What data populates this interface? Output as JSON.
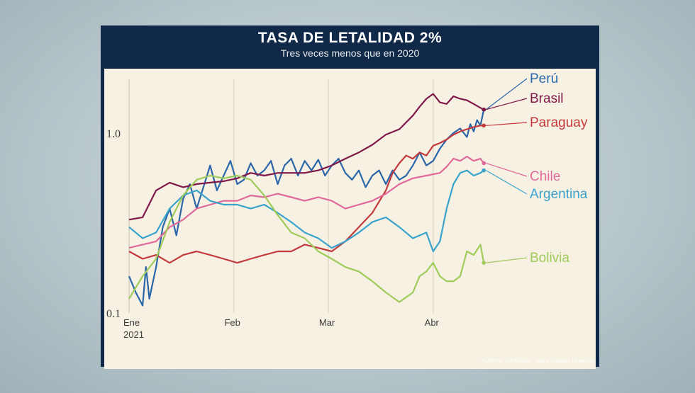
{
  "header": {
    "title": "TASA DE LETALIDAD 2%",
    "subtitle": "Tres veces menos que en 2020",
    "source": "FUENTE: OPS/OMS - Johns Hopkins University"
  },
  "chart_data": {
    "type": "line",
    "title": "TASA DE LETALIDAD 2%",
    "subtitle": "Tres veces menos que en 2020",
    "yscale": "log",
    "ylim": [
      0.1,
      1.9
    ],
    "y_ticks": [
      {
        "value": 0.1,
        "label": "0.1"
      },
      {
        "value": 1.0,
        "label": "1.0"
      }
    ],
    "xlim": [
      0,
      106
    ],
    "x_ticks": [
      {
        "day": 0,
        "label": "Ene",
        "sublabel": "2021"
      },
      {
        "day": 31,
        "label": "Feb"
      },
      {
        "day": 59,
        "label": "Mar"
      },
      {
        "day": 90,
        "label": "Abr"
      }
    ],
    "grid": "vertical",
    "series": [
      {
        "name": "Perú",
        "color": "#2b67a8",
        "points": [
          [
            0,
            0.16
          ],
          [
            2,
            0.13
          ],
          [
            4,
            0.11
          ],
          [
            5,
            0.18
          ],
          [
            6,
            0.12
          ],
          [
            8,
            0.18
          ],
          [
            10,
            0.3
          ],
          [
            12,
            0.38
          ],
          [
            14,
            0.27
          ],
          [
            16,
            0.43
          ],
          [
            18,
            0.52
          ],
          [
            20,
            0.38
          ],
          [
            22,
            0.5
          ],
          [
            24,
            0.66
          ],
          [
            26,
            0.48
          ],
          [
            28,
            0.58
          ],
          [
            30,
            0.7
          ],
          [
            32,
            0.52
          ],
          [
            34,
            0.55
          ],
          [
            36,
            0.68
          ],
          [
            38,
            0.58
          ],
          [
            40,
            0.62
          ],
          [
            42,
            0.7
          ],
          [
            44,
            0.52
          ],
          [
            46,
            0.66
          ],
          [
            48,
            0.72
          ],
          [
            50,
            0.58
          ],
          [
            52,
            0.7
          ],
          [
            54,
            0.62
          ],
          [
            56,
            0.71
          ],
          [
            58,
            0.58
          ],
          [
            60,
            0.66
          ],
          [
            62,
            0.72
          ],
          [
            64,
            0.6
          ],
          [
            66,
            0.55
          ],
          [
            68,
            0.62
          ],
          [
            70,
            0.5
          ],
          [
            72,
            0.58
          ],
          [
            74,
            0.62
          ],
          [
            76,
            0.52
          ],
          [
            78,
            0.62
          ],
          [
            80,
            0.55
          ],
          [
            82,
            0.58
          ],
          [
            84,
            0.66
          ],
          [
            86,
            0.78
          ],
          [
            88,
            0.66
          ],
          [
            90,
            0.7
          ],
          [
            92,
            0.82
          ],
          [
            94,
            0.92
          ],
          [
            96,
            1.0
          ],
          [
            98,
            1.06
          ],
          [
            100,
            0.95
          ],
          [
            101,
            1.12
          ],
          [
            102,
            1.02
          ],
          [
            103,
            1.18
          ],
          [
            104,
            1.1
          ],
          [
            105,
            1.35
          ]
        ]
      },
      {
        "name": "Brasil",
        "color": "#7e1848",
        "points": [
          [
            0,
            0.33
          ],
          [
            4,
            0.34
          ],
          [
            8,
            0.48
          ],
          [
            12,
            0.53
          ],
          [
            16,
            0.5
          ],
          [
            20,
            0.52
          ],
          [
            24,
            0.53
          ],
          [
            28,
            0.54
          ],
          [
            32,
            0.56
          ],
          [
            36,
            0.6
          ],
          [
            40,
            0.58
          ],
          [
            44,
            0.6
          ],
          [
            48,
            0.6
          ],
          [
            52,
            0.6
          ],
          [
            56,
            0.62
          ],
          [
            60,
            0.66
          ],
          [
            64,
            0.72
          ],
          [
            68,
            0.78
          ],
          [
            72,
            0.86
          ],
          [
            76,
            0.98
          ],
          [
            80,
            1.05
          ],
          [
            84,
            1.25
          ],
          [
            86,
            1.4
          ],
          [
            88,
            1.55
          ],
          [
            90,
            1.65
          ],
          [
            92,
            1.48
          ],
          [
            94,
            1.45
          ],
          [
            96,
            1.6
          ],
          [
            98,
            1.55
          ],
          [
            100,
            1.52
          ],
          [
            102,
            1.45
          ],
          [
            104,
            1.38
          ],
          [
            105,
            1.35
          ]
        ]
      },
      {
        "name": "Paraguay",
        "color": "#c23a3c",
        "points": [
          [
            0,
            0.22
          ],
          [
            4,
            0.2
          ],
          [
            8,
            0.21
          ],
          [
            12,
            0.19
          ],
          [
            16,
            0.21
          ],
          [
            20,
            0.22
          ],
          [
            24,
            0.21
          ],
          [
            28,
            0.2
          ],
          [
            32,
            0.19
          ],
          [
            36,
            0.2
          ],
          [
            40,
            0.21
          ],
          [
            44,
            0.22
          ],
          [
            48,
            0.22
          ],
          [
            52,
            0.24
          ],
          [
            56,
            0.23
          ],
          [
            60,
            0.22
          ],
          [
            64,
            0.25
          ],
          [
            68,
            0.3
          ],
          [
            72,
            0.36
          ],
          [
            76,
            0.48
          ],
          [
            78,
            0.6
          ],
          [
            80,
            0.68
          ],
          [
            82,
            0.75
          ],
          [
            84,
            0.72
          ],
          [
            86,
            0.78
          ],
          [
            88,
            0.75
          ],
          [
            90,
            0.85
          ],
          [
            92,
            0.88
          ],
          [
            94,
            0.92
          ],
          [
            96,
            0.98
          ],
          [
            98,
            1.02
          ],
          [
            100,
            1.05
          ],
          [
            102,
            1.08
          ],
          [
            104,
            1.1
          ],
          [
            105,
            1.1
          ]
        ]
      },
      {
        "name": "Chile",
        "color": "#e0689a",
        "points": [
          [
            0,
            0.23
          ],
          [
            4,
            0.24
          ],
          [
            8,
            0.25
          ],
          [
            12,
            0.3
          ],
          [
            16,
            0.33
          ],
          [
            20,
            0.38
          ],
          [
            24,
            0.4
          ],
          [
            28,
            0.42
          ],
          [
            32,
            0.42
          ],
          [
            36,
            0.45
          ],
          [
            40,
            0.44
          ],
          [
            44,
            0.46
          ],
          [
            48,
            0.44
          ],
          [
            52,
            0.42
          ],
          [
            56,
            0.44
          ],
          [
            60,
            0.42
          ],
          [
            64,
            0.38
          ],
          [
            68,
            0.4
          ],
          [
            72,
            0.42
          ],
          [
            76,
            0.46
          ],
          [
            80,
            0.52
          ],
          [
            84,
            0.56
          ],
          [
            88,
            0.58
          ],
          [
            92,
            0.6
          ],
          [
            94,
            0.65
          ],
          [
            96,
            0.72
          ],
          [
            98,
            0.7
          ],
          [
            100,
            0.74
          ],
          [
            102,
            0.7
          ],
          [
            104,
            0.72
          ],
          [
            105,
            0.68
          ]
        ]
      },
      {
        "name": "Argentina",
        "color": "#3aa3cc",
        "points": [
          [
            0,
            0.3
          ],
          [
            4,
            0.26
          ],
          [
            8,
            0.28
          ],
          [
            12,
            0.38
          ],
          [
            16,
            0.45
          ],
          [
            20,
            0.48
          ],
          [
            24,
            0.42
          ],
          [
            28,
            0.4
          ],
          [
            32,
            0.4
          ],
          [
            36,
            0.38
          ],
          [
            40,
            0.4
          ],
          [
            44,
            0.36
          ],
          [
            48,
            0.32
          ],
          [
            52,
            0.28
          ],
          [
            56,
            0.26
          ],
          [
            60,
            0.23
          ],
          [
            64,
            0.25
          ],
          [
            68,
            0.28
          ],
          [
            72,
            0.32
          ],
          [
            76,
            0.34
          ],
          [
            80,
            0.3
          ],
          [
            84,
            0.26
          ],
          [
            88,
            0.28
          ],
          [
            90,
            0.22
          ],
          [
            92,
            0.25
          ],
          [
            94,
            0.38
          ],
          [
            96,
            0.52
          ],
          [
            98,
            0.6
          ],
          [
            100,
            0.62
          ],
          [
            102,
            0.58
          ],
          [
            104,
            0.6
          ],
          [
            105,
            0.62
          ]
        ]
      },
      {
        "name": "Bolivia",
        "color": "#9fcb5a",
        "points": [
          [
            0,
            0.12
          ],
          [
            4,
            0.16
          ],
          [
            8,
            0.2
          ],
          [
            12,
            0.32
          ],
          [
            16,
            0.45
          ],
          [
            20,
            0.55
          ],
          [
            24,
            0.58
          ],
          [
            28,
            0.56
          ],
          [
            32,
            0.58
          ],
          [
            36,
            0.55
          ],
          [
            40,
            0.45
          ],
          [
            44,
            0.35
          ],
          [
            48,
            0.28
          ],
          [
            52,
            0.26
          ],
          [
            56,
            0.22
          ],
          [
            60,
            0.2
          ],
          [
            64,
            0.18
          ],
          [
            68,
            0.17
          ],
          [
            72,
            0.15
          ],
          [
            76,
            0.13
          ],
          [
            80,
            0.115
          ],
          [
            84,
            0.13
          ],
          [
            86,
            0.16
          ],
          [
            88,
            0.17
          ],
          [
            90,
            0.19
          ],
          [
            92,
            0.16
          ],
          [
            94,
            0.15
          ],
          [
            96,
            0.15
          ],
          [
            98,
            0.16
          ],
          [
            100,
            0.22
          ],
          [
            102,
            0.21
          ],
          [
            104,
            0.24
          ],
          [
            105,
            0.19
          ]
        ]
      }
    ]
  }
}
